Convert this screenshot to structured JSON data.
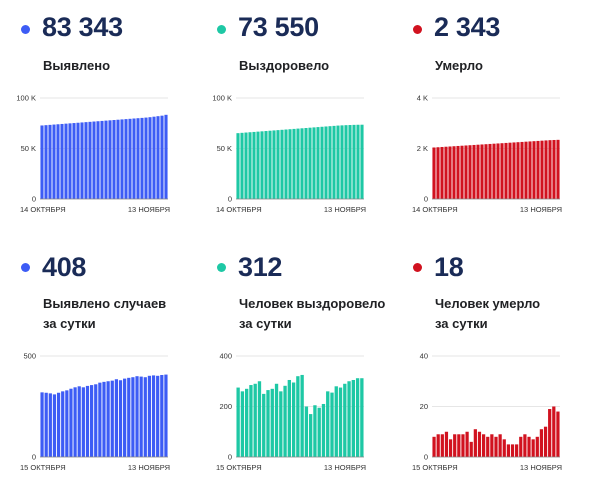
{
  "colors": {
    "blue": "#3d5cf5",
    "teal": "#1ec8a5",
    "red": "#d1121f"
  },
  "panels": [
    {
      "id": "cases",
      "value": "83 343",
      "label_lines": [
        "Выявлено"
      ],
      "color": "#3d5cf5",
      "date_start": "14 ОКТЯБРЯ",
      "date_end": "13 НОЯБРЯ"
    },
    {
      "id": "recovered",
      "value": "73 550",
      "label_lines": [
        "Выздоровело"
      ],
      "color": "#1ec8a5",
      "date_start": "14 ОКТЯБРЯ",
      "date_end": "13 НОЯБРЯ"
    },
    {
      "id": "deaths",
      "value": "2 343",
      "label_lines": [
        "Умерло"
      ],
      "color": "#d1121f",
      "date_start": "14 ОКТЯБРЯ",
      "date_end": "13 НОЯБРЯ"
    },
    {
      "id": "daily-cases",
      "value": "408",
      "label_lines": [
        "Выявлено случаев",
        "за сутки"
      ],
      "color": "#3d5cf5",
      "date_start": "15 ОКТЯБРЯ",
      "date_end": "13 НОЯБРЯ"
    },
    {
      "id": "daily-recovered",
      "value": "312",
      "label_lines": [
        "Человек выздоровело",
        "за сутки"
      ],
      "color": "#1ec8a5",
      "date_start": "15 ОКТЯБРЯ",
      "date_end": "13 НОЯБРЯ"
    },
    {
      "id": "daily-deaths",
      "value": "18",
      "label_lines": [
        "Человек умерло",
        "за сутки"
      ],
      "color": "#d1121f",
      "date_start": "15 ОКТЯБРЯ",
      "date_end": "13 НОЯБРЯ"
    }
  ],
  "chart_data": [
    {
      "type": "bar",
      "y_ticks": [
        "0",
        "50 K",
        "100 K"
      ],
      "ylim": [
        0,
        100000
      ],
      "x_labels": [
        "14 ОКТЯБРЯ",
        "13 НОЯБРЯ"
      ],
      "values": [
        72800,
        73100,
        73400,
        73700,
        74000,
        74300,
        74600,
        74900,
        75200,
        75500,
        75800,
        76100,
        76400,
        76700,
        77000,
        77300,
        77600,
        77900,
        78200,
        78500,
        78800,
        79100,
        79400,
        79700,
        80000,
        80300,
        80600,
        81000,
        81500,
        82000,
        82500,
        83343
      ]
    },
    {
      "type": "bar",
      "y_ticks": [
        "0",
        "50 K",
        "100 K"
      ],
      "ylim": [
        0,
        100000
      ],
      "x_labels": [
        "14 ОКТЯБРЯ",
        "13 НОЯБРЯ"
      ],
      "values": [
        65200,
        65500,
        65800,
        66100,
        66400,
        66700,
        67000,
        67300,
        67600,
        67900,
        68200,
        68500,
        68800,
        69100,
        69400,
        69700,
        70000,
        70300,
        70600,
        70900,
        71200,
        71500,
        71800,
        72100,
        72400,
        72700,
        72900,
        73100,
        73250,
        73400,
        73500,
        73550
      ]
    },
    {
      "type": "bar",
      "y_ticks": [
        "0",
        "2 K",
        "4 K"
      ],
      "ylim": [
        0,
        4000
      ],
      "x_labels": [
        "14 ОКТЯБРЯ",
        "13 НОЯБРЯ"
      ],
      "values": [
        2040,
        2050,
        2060,
        2070,
        2080,
        2090,
        2100,
        2110,
        2120,
        2130,
        2140,
        2150,
        2160,
        2170,
        2180,
        2190,
        2200,
        2210,
        2220,
        2230,
        2240,
        2250,
        2260,
        2270,
        2280,
        2290,
        2300,
        2310,
        2320,
        2330,
        2337,
        2343
      ]
    },
    {
      "type": "bar",
      "y_ticks": [
        "0",
        "500"
      ],
      "ylim": [
        0,
        500
      ],
      "x_labels": [
        "15 ОКТЯБРЯ",
        "13 НОЯБРЯ"
      ],
      "values": [
        320,
        318,
        315,
        310,
        318,
        325,
        330,
        338,
        345,
        350,
        345,
        352,
        356,
        360,
        368,
        372,
        375,
        378,
        385,
        380,
        388,
        392,
        395,
        400,
        398,
        395,
        402,
        404,
        402,
        406,
        408
      ]
    },
    {
      "type": "bar",
      "y_ticks": [
        "0",
        "200",
        "400"
      ],
      "ylim": [
        0,
        400
      ],
      "x_labels": [
        "15 ОКТЯБРЯ",
        "13 НОЯБРЯ"
      ],
      "values": [
        275,
        260,
        270,
        285,
        290,
        300,
        250,
        265,
        270,
        290,
        260,
        282,
        305,
        295,
        320,
        325,
        200,
        170,
        205,
        195,
        210,
        260,
        255,
        280,
        275,
        290,
        300,
        305,
        312,
        312
      ]
    },
    {
      "type": "bar",
      "y_ticks": [
        "0",
        "20",
        "40"
      ],
      "ylim": [
        0,
        40
      ],
      "x_labels": [
        "15 ОКТЯБРЯ",
        "13 НОЯБРЯ"
      ],
      "values": [
        8,
        9,
        9,
        10,
        7,
        9,
        9,
        9,
        10,
        6,
        11,
        10,
        9,
        8,
        9,
        8,
        9,
        7,
        5,
        5,
        5,
        8,
        9,
        8,
        7,
        8,
        11,
        12,
        19,
        20,
        18
      ]
    }
  ]
}
